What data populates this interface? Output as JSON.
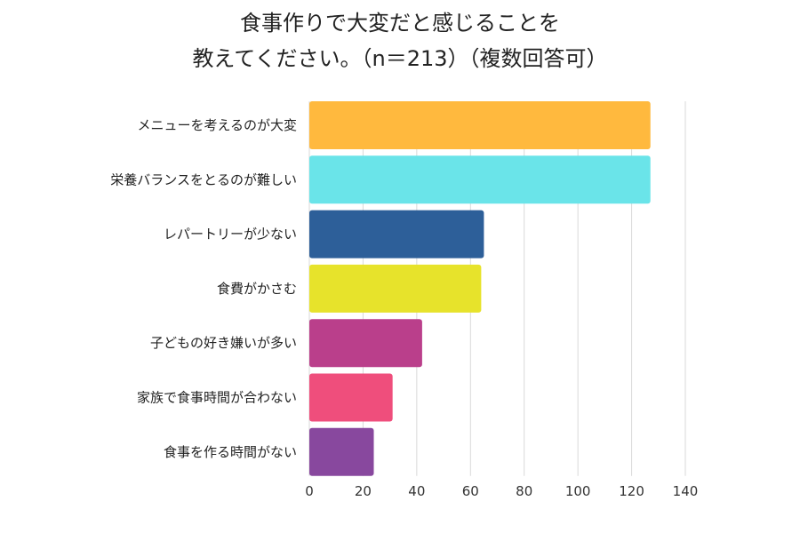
{
  "chart_data": {
    "type": "bar",
    "orientation": "horizontal",
    "title_lines": [
      "食事作りで大変だと感じることを",
      "教えてください。（n＝213）（複数回答可）"
    ],
    "categories": [
      "メニューを考えるのが大変",
      "栄養バランスをとるのが難しい",
      "レパートリーが少ない",
      "食費がかさむ",
      "子どもの好き嫌いが多い",
      "家族で食事時間が合わない",
      "食事を作る時間がない"
    ],
    "values": [
      127,
      127,
      65,
      64,
      42,
      31,
      24
    ],
    "colors": [
      "#FFB93E",
      "#6AE4E9",
      "#2D5F99",
      "#E7E32B",
      "#BA3F8B",
      "#EF4E7C",
      "#88489E"
    ],
    "xlim": [
      0,
      140
    ],
    "xticks": [
      "0",
      "20",
      "40",
      "60",
      "80",
      "100",
      "120",
      "140"
    ],
    "grid": true,
    "legend": "none"
  }
}
